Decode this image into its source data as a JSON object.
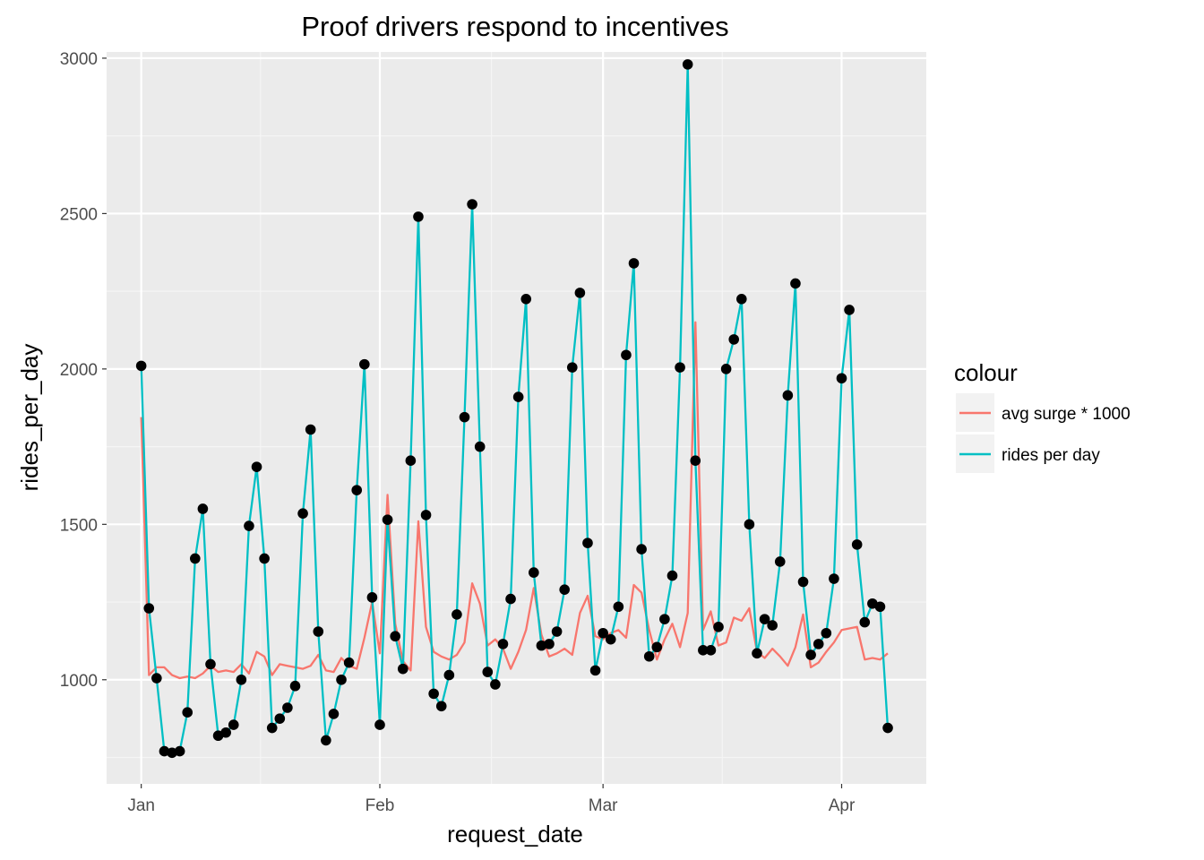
{
  "chart_data": {
    "type": "line",
    "title": "Proof drivers respond to incentives",
    "xlabel": "request_date",
    "ylabel": "rides_per_day",
    "x_tick_labels": [
      "Jan",
      "Feb",
      "Mar",
      "Apr"
    ],
    "x_tick_days": [
      0,
      31,
      60,
      91
    ],
    "y_ticks": [
      1000,
      1500,
      2000,
      2500,
      3000
    ],
    "xlim": [
      -4.5,
      102
    ],
    "ylim": [
      665,
      3020
    ],
    "grid": true,
    "legend": {
      "title": "colour",
      "position": "right",
      "entries": [
        {
          "label": "avg surge * 1000",
          "color": "#F8766D"
        },
        {
          "label": "rides per day",
          "color": "#00BFC4"
        }
      ]
    },
    "series": [
      {
        "name": "avg surge * 1000",
        "color": "#F8766D",
        "values": [
          1845,
          1015,
          1040,
          1040,
          1015,
          1005,
          1010,
          1005,
          1020,
          1045,
          1025,
          1030,
          1025,
          1050,
          1020,
          1090,
          1075,
          1015,
          1050,
          1045,
          1040,
          1035,
          1045,
          1080,
          1030,
          1025,
          1070,
          1045,
          1035,
          1135,
          1250,
          1085,
          1595,
          1180,
          1060,
          1030,
          1510,
          1170,
          1090,
          1075,
          1065,
          1080,
          1120,
          1310,
          1245,
          1110,
          1130,
          1100,
          1035,
          1090,
          1160,
          1295,
          1145,
          1075,
          1085,
          1100,
          1080,
          1215,
          1270,
          1140,
          1130,
          1150,
          1160,
          1135,
          1305,
          1280,
          1160,
          1065,
          1130,
          1180,
          1105,
          1215,
          2150,
          1160,
          1220,
          1110,
          1120,
          1200,
          1190,
          1230,
          1090,
          1070,
          1100,
          1075,
          1045,
          1105,
          1210,
          1040,
          1055,
          1090,
          1120,
          1160,
          1165,
          1170,
          1065,
          1070,
          1065,
          1085
        ]
      },
      {
        "name": "rides per day",
        "color": "#00BFC4",
        "values": [
          2010,
          1230,
          1005,
          770,
          765,
          770,
          895,
          1390,
          1550,
          1050,
          820,
          830,
          855,
          1000,
          1495,
          1685,
          1390,
          845,
          875,
          910,
          980,
          1535,
          1805,
          1155,
          805,
          890,
          1000,
          1055,
          1610,
          2015,
          1265,
          855,
          1515,
          1140,
          1035,
          1705,
          2490,
          1530,
          955,
          915,
          1015,
          1210,
          1845,
          2530,
          1750,
          1025,
          985,
          1115,
          1260,
          1910,
          2225,
          1345,
          1110,
          1115,
          1155,
          1290,
          2005,
          2245,
          1440,
          1030,
          1150,
          1130,
          1235,
          2045,
          2340,
          1420,
          1075,
          1105,
          1195,
          1335,
          2005,
          2980,
          1705,
          1095,
          1095,
          1170,
          2000,
          2095,
          2225,
          1500,
          1085,
          1195,
          1175,
          1380,
          1915,
          2275,
          1315,
          1080,
          1115,
          1150,
          1325,
          1970,
          2190,
          1435,
          1185,
          1245,
          1235,
          845
        ]
      }
    ]
  }
}
